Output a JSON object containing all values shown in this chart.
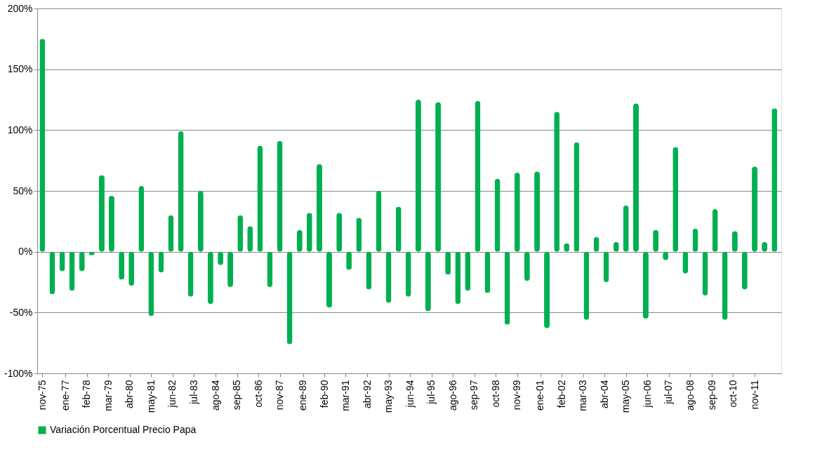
{
  "chart_data": {
    "type": "bar",
    "x": [
      "1975-11",
      "1976-05",
      "1976-11",
      "1977-05",
      "1977-11",
      "1978-05",
      "1978-11",
      "1979-05",
      "1979-11",
      "1980-05",
      "1980-11",
      "1981-05",
      "1981-11",
      "1982-05",
      "1982-11",
      "1983-05",
      "1983-11",
      "1984-05",
      "1984-11",
      "1985-05",
      "1985-11",
      "1986-05",
      "1986-11",
      "1987-05",
      "1987-11",
      "1988-05",
      "1988-11",
      "1989-05",
      "1989-11",
      "1990-05",
      "1990-11",
      "1991-05",
      "1991-11",
      "1992-05",
      "1992-11",
      "1993-05",
      "1993-11",
      "1994-05",
      "1994-11",
      "1995-05",
      "1995-11",
      "1996-05",
      "1996-11",
      "1997-05",
      "1997-11",
      "1998-05",
      "1998-11",
      "1999-05",
      "1999-11",
      "2000-05",
      "2000-11",
      "2001-05",
      "2001-11",
      "2002-05",
      "2002-11",
      "2003-05",
      "2003-11",
      "2004-05",
      "2004-11",
      "2005-05",
      "2005-11",
      "2006-05",
      "2006-11",
      "2007-05",
      "2007-11",
      "2008-05",
      "2008-11",
      "2009-05",
      "2009-11",
      "2010-05",
      "2010-11",
      "2011-05",
      "2011-11",
      "2012-05",
      "2012-11"
    ],
    "series": [
      {
        "name": "Variación Porcentual Precio Papa",
        "color": "#00b050",
        "values": [
          175,
          -35,
          -16,
          -32,
          -16,
          -3,
          63,
          46,
          -23,
          -28,
          54,
          -53,
          -17,
          30,
          99,
          -37,
          50,
          -43,
          -11,
          -29,
          30,
          21,
          87,
          -29,
          91,
          -76,
          18,
          32,
          72,
          -46,
          32,
          -15,
          28,
          -31,
          50,
          -42,
          37,
          -37,
          125,
          -49,
          123,
          -19,
          -43,
          -32,
          124,
          -34,
          60,
          -60,
          65,
          -24,
          66,
          -63,
          115,
          7,
          90,
          -56,
          12,
          -25,
          8,
          38,
          122,
          -55,
          18,
          -7,
          86,
          -18,
          19,
          -36,
          35,
          -56,
          17,
          -31,
          70,
          8,
          118
        ]
      }
    ],
    "xlim": [
      "1975-10",
      "2013-01"
    ],
    "xticks": [
      {
        "value": "1975-11",
        "label": "nov-75"
      },
      {
        "value": "1977-01",
        "label": "ene-77"
      },
      {
        "value": "1978-02",
        "label": "feb-78"
      },
      {
        "value": "1979-03",
        "label": "mar-79"
      },
      {
        "value": "1980-04",
        "label": "abr-80"
      },
      {
        "value": "1981-05",
        "label": "may-81"
      },
      {
        "value": "1982-06",
        "label": "jun-82"
      },
      {
        "value": "1983-07",
        "label": "jul-83"
      },
      {
        "value": "1984-08",
        "label": "ago-84"
      },
      {
        "value": "1985-09",
        "label": "sep-85"
      },
      {
        "value": "1986-10",
        "label": "oct-86"
      },
      {
        "value": "1987-11",
        "label": "nov-87"
      },
      {
        "value": "1989-01",
        "label": "ene-89"
      },
      {
        "value": "1990-02",
        "label": "feb-90"
      },
      {
        "value": "1991-03",
        "label": "mar-91"
      },
      {
        "value": "1992-04",
        "label": "abr-92"
      },
      {
        "value": "1993-05",
        "label": "may-93"
      },
      {
        "value": "1994-06",
        "label": "jun-94"
      },
      {
        "value": "1995-07",
        "label": "jul-95"
      },
      {
        "value": "1996-08",
        "label": "ago-96"
      },
      {
        "value": "1997-09",
        "label": "sep-97"
      },
      {
        "value": "1998-10",
        "label": "oct-98"
      },
      {
        "value": "1999-11",
        "label": "nov-99"
      },
      {
        "value": "2001-01",
        "label": "ene-01"
      },
      {
        "value": "2002-02",
        "label": "feb-02"
      },
      {
        "value": "2003-03",
        "label": "mar-03"
      },
      {
        "value": "2004-04",
        "label": "abr-04"
      },
      {
        "value": "2005-05",
        "label": "may-05"
      },
      {
        "value": "2006-06",
        "label": "jun-06"
      },
      {
        "value": "2007-07",
        "label": "jul-07"
      },
      {
        "value": "2008-08",
        "label": "ago-08"
      },
      {
        "value": "2009-09",
        "label": "sep-09"
      },
      {
        "value": "2010-10",
        "label": "oct-10"
      },
      {
        "value": "2011-11",
        "label": "nov-11"
      }
    ],
    "ylim": [
      -100,
      200
    ],
    "yticks": [
      {
        "value": -100,
        "label": "-100%"
      },
      {
        "value": -50,
        "label": "-50%"
      },
      {
        "value": 0,
        "label": "0%"
      },
      {
        "value": 50,
        "label": "50%"
      },
      {
        "value": 100,
        "label": "100%"
      },
      {
        "value": 150,
        "label": "150%"
      },
      {
        "value": 200,
        "label": "200%"
      }
    ],
    "grid": "y",
    "legend": "bottom"
  }
}
